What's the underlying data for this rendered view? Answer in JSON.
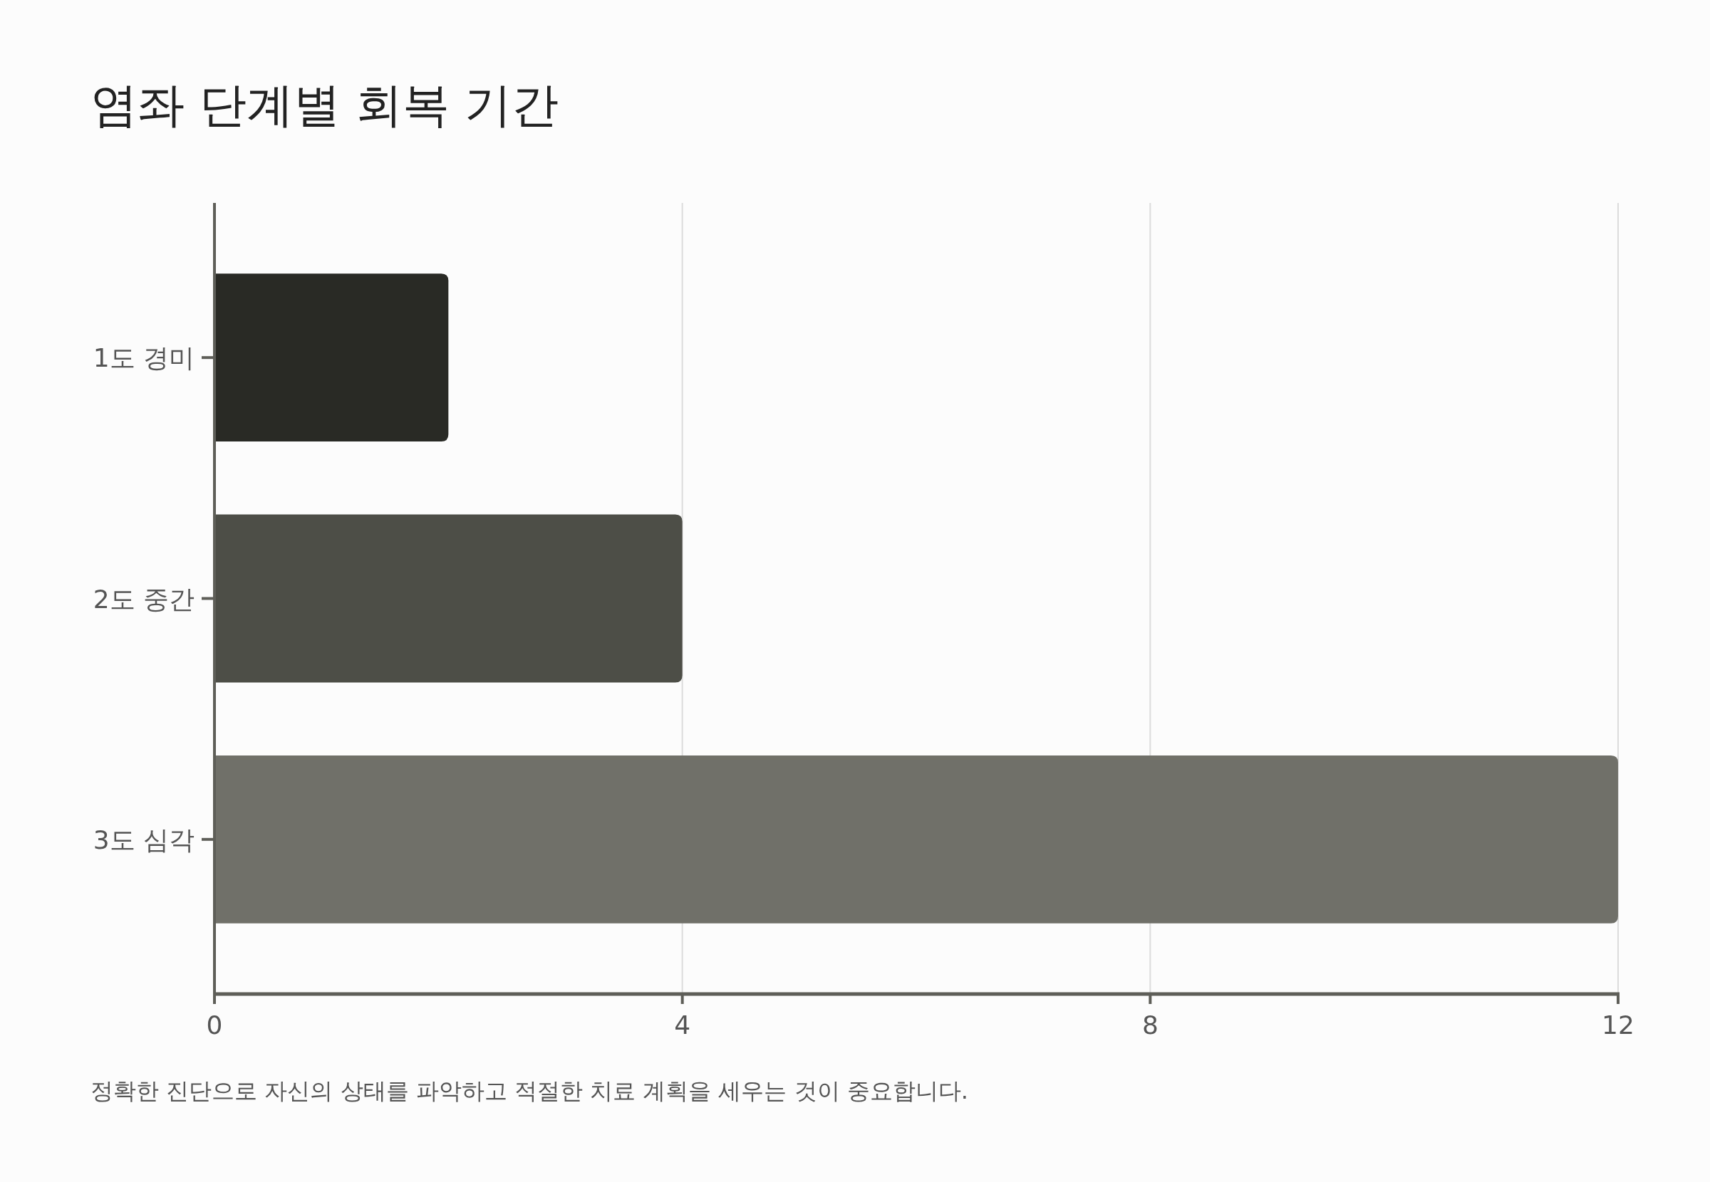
{
  "chart_data": {
    "type": "bar",
    "orientation": "horizontal",
    "title": "염좌 단계별 회복 기간",
    "categories": [
      "1도 경미",
      "2도 중간",
      "3도 심각"
    ],
    "values": [
      2,
      4,
      12
    ],
    "colors": [
      "#292a25",
      "#4d4e47",
      "#707069"
    ],
    "xlim": [
      0,
      12
    ],
    "xticks": [
      0,
      4,
      8,
      12
    ],
    "grid": "x",
    "annotations": [
      "정확한 진단으로 자신의 상태를 파악하고 적절한 치료 계획을 세우는 것이 중요합니다."
    ]
  }
}
